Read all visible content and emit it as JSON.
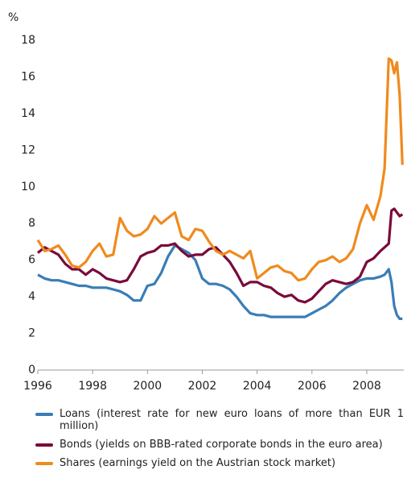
{
  "chart_data": {
    "type": "line",
    "y_label": "%",
    "x": [
      1996,
      1996.25,
      1996.5,
      1996.75,
      1997,
      1997.25,
      1997.5,
      1997.75,
      1998,
      1998.25,
      1998.5,
      1998.75,
      1999,
      1999.25,
      1999.5,
      1999.75,
      2000,
      2000.25,
      2000.5,
      2000.75,
      2001,
      2001.25,
      2001.5,
      2001.75,
      2002,
      2002.25,
      2002.5,
      2002.75,
      2003,
      2003.25,
      2003.5,
      2003.75,
      2004,
      2004.25,
      2004.5,
      2004.75,
      2005,
      2005.25,
      2005.5,
      2005.75,
      2006,
      2006.25,
      2006.5,
      2006.75,
      2007,
      2007.25,
      2007.5,
      2007.75,
      2008,
      2008.25,
      2008.5,
      2008.65,
      2008.8,
      2008.9,
      2009,
      2009.1,
      2009.2,
      2009.3
    ],
    "series": [
      {
        "name": "Loans (interest rate for new euro loans of more than EUR 1 million)",
        "color": "#3a7db6",
        "values": [
          5.2,
          5.0,
          4.9,
          4.9,
          4.8,
          4.7,
          4.6,
          4.6,
          4.5,
          4.5,
          4.5,
          4.4,
          4.3,
          4.1,
          3.8,
          3.8,
          4.6,
          4.7,
          5.3,
          6.2,
          6.8,
          6.6,
          6.4,
          6.0,
          5.0,
          4.7,
          4.7,
          4.6,
          4.4,
          4.0,
          3.5,
          3.1,
          3.0,
          3.0,
          2.9,
          2.9,
          2.9,
          2.9,
          2.9,
          2.9,
          3.1,
          3.3,
          3.5,
          3.8,
          4.2,
          4.5,
          4.7,
          4.9,
          5.0,
          5.0,
          5.1,
          5.2,
          5.5,
          4.8,
          3.5,
          3.0,
          2.8,
          2.8
        ]
      },
      {
        "name": "Bonds (yields on BBB-rated corporate bonds in the euro area)",
        "color": "#7a0a3a",
        "values": [
          6.4,
          6.7,
          6.5,
          6.3,
          5.8,
          5.5,
          5.5,
          5.2,
          5.5,
          5.3,
          5.0,
          4.9,
          4.8,
          4.9,
          5.5,
          6.2,
          6.4,
          6.5,
          6.8,
          6.8,
          6.9,
          6.5,
          6.2,
          6.3,
          6.3,
          6.6,
          6.7,
          6.3,
          5.9,
          5.3,
          4.6,
          4.8,
          4.8,
          4.6,
          4.5,
          4.2,
          4.0,
          4.1,
          3.8,
          3.7,
          3.9,
          4.3,
          4.7,
          4.9,
          4.8,
          4.7,
          4.8,
          5.1,
          5.9,
          6.1,
          6.5,
          6.7,
          6.9,
          8.7,
          8.8,
          8.6,
          8.4,
          8.5
        ]
      },
      {
        "name": "Shares (earnings yield on the Austrian stock market)",
        "color": "#f08a1e",
        "values": [
          7.1,
          6.5,
          6.6,
          6.8,
          6.3,
          5.7,
          5.6,
          5.9,
          6.5,
          6.9,
          6.2,
          6.3,
          8.3,
          7.6,
          7.3,
          7.4,
          7.7,
          8.4,
          8.0,
          8.3,
          8.6,
          7.3,
          7.1,
          7.7,
          7.6,
          7.0,
          6.5,
          6.3,
          6.5,
          6.3,
          6.1,
          6.5,
          5.0,
          5.3,
          5.6,
          5.7,
          5.4,
          5.3,
          4.9,
          5.0,
          5.5,
          5.9,
          6.0,
          6.2,
          5.9,
          6.1,
          6.6,
          8.0,
          9.0,
          8.2,
          9.5,
          11.0,
          17.0,
          16.9,
          16.2,
          16.8,
          15.0,
          11.2
        ]
      }
    ],
    "xlim": [
      1996,
      2009.35
    ],
    "xticks": [
      1996,
      1998,
      2000,
      2002,
      2004,
      2006,
      2008
    ],
    "ylim": [
      0,
      18
    ],
    "yticks": [
      0,
      2,
      4,
      6,
      8,
      10,
      12,
      14,
      16,
      18
    ],
    "grid": false
  }
}
